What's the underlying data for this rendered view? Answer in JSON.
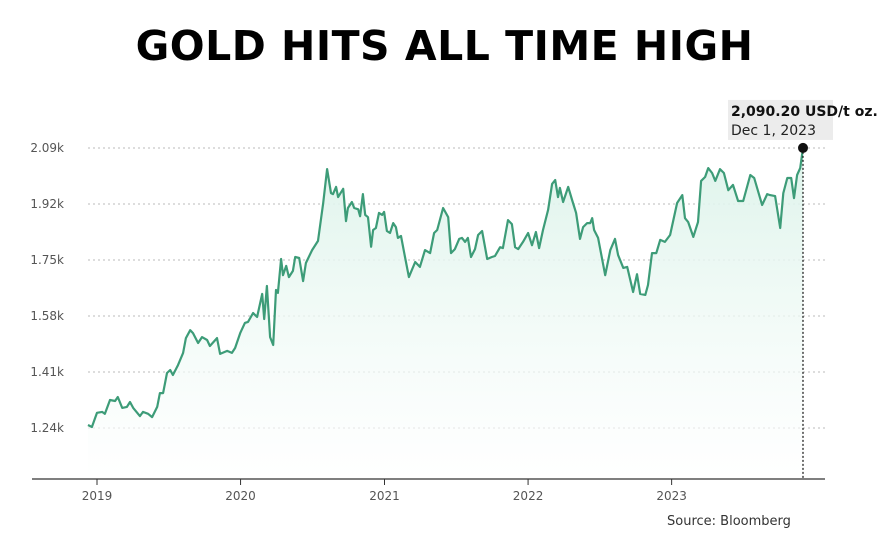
{
  "chart_data": {
    "type": "area",
    "title": "GOLD HITS ALL TIME HIGH",
    "source": "Source: Bloomberg",
    "xlabel": "",
    "ylabel": "",
    "line_color": "#3d9c78",
    "fill_color": "#e3f5ee",
    "grid": "horizontal dotted",
    "x_ticks": [
      {
        "date": "2019-01-01",
        "label": "2019"
      },
      {
        "date": "2020-01-01",
        "label": "2020"
      },
      {
        "date": "2021-01-01",
        "label": "2021"
      },
      {
        "date": "2022-01-01",
        "label": "2022"
      },
      {
        "date": "2023-01-01",
        "label": "2023"
      }
    ],
    "y_ticks": [
      {
        "value": 1240,
        "label": "1.24k"
      },
      {
        "value": 1410,
        "label": "1.41k"
      },
      {
        "value": 1580,
        "label": "1.58k"
      },
      {
        "value": 1750,
        "label": "1.75k"
      },
      {
        "value": 1920,
        "label": "1.92k"
      },
      {
        "value": 2090,
        "label": "2.09k"
      }
    ],
    "ylim": [
      1085,
      2150
    ],
    "annotation": {
      "date": "2023-12-01",
      "value": 2090.2,
      "value_label": "2,090.20 USD/t oz.",
      "date_label": "Dec 1, 2023"
    },
    "x": [
      "2018-12-09",
      "2018-12-19",
      "2019-01-01",
      "2019-01-14",
      "2019-01-21",
      "2019-02-03",
      "2019-02-16",
      "2019-02-23",
      "2019-03-06",
      "2019-03-18",
      "2019-03-26",
      "2019-04-03",
      "2019-04-20",
      "2019-04-28",
      "2019-05-11",
      "2019-05-21",
      "2019-06-03",
      "2019-06-10",
      "2019-06-18",
      "2019-06-28",
      "2019-07-06",
      "2019-07-13",
      "2019-07-26",
      "2019-08-08",
      "2019-08-15",
      "2019-08-26",
      "2019-09-02",
      "2019-09-15",
      "2019-09-25",
      "2019-10-08",
      "2019-10-15",
      "2019-11-02",
      "2019-11-10",
      "2019-11-28",
      "2019-12-10",
      "2019-12-18",
      "2019-12-31",
      "2020-01-12",
      "2020-01-20",
      "2020-02-02",
      "2020-02-12",
      "2020-02-25",
      "2020-03-01",
      "2020-03-08",
      "2020-03-16",
      "2020-03-24",
      "2020-03-31",
      "2020-04-05",
      "2020-04-13",
      "2020-04-18",
      "2020-04-26",
      "2020-05-03",
      "2020-05-13",
      "2020-05-19",
      "2020-05-29",
      "2020-06-08",
      "2020-06-15",
      "2020-07-01",
      "2020-07-16",
      "2020-07-29",
      "2020-08-08",
      "2020-08-18",
      "2020-08-23",
      "2020-08-31",
      "2020-09-05",
      "2020-09-18",
      "2020-09-25",
      "2020-09-30",
      "2020-10-10",
      "2020-10-16",
      "2020-10-26",
      "2020-10-31",
      "2020-11-07",
      "2020-11-13",
      "2020-11-20",
      "2020-11-28",
      "2020-12-03",
      "2020-12-10",
      "2020-12-18",
      "2020-12-26",
      "2020-12-31",
      "2021-01-07",
      "2021-01-15",
      "2021-01-23",
      "2021-01-30",
      "2021-02-04",
      "2021-02-12",
      "2021-02-22",
      "2021-03-04",
      "2021-03-20",
      "2021-04-01",
      "2021-04-14",
      "2021-04-27",
      "2021-05-07",
      "2021-05-15",
      "2021-05-30",
      "2021-06-12",
      "2021-06-19",
      "2021-06-29",
      "2021-07-10",
      "2021-07-17",
      "2021-07-25",
      "2021-08-01",
      "2021-08-09",
      "2021-08-19",
      "2021-08-27",
      "2021-09-06",
      "2021-09-19",
      "2021-10-01",
      "2021-10-09",
      "2021-10-22",
      "2021-10-29",
      "2021-11-11",
      "2021-11-21",
      "2021-11-29",
      "2021-12-07",
      "2021-12-19",
      "2022-01-01",
      "2022-01-11",
      "2022-01-21",
      "2022-01-29",
      "2022-02-08",
      "2022-02-21",
      "2022-03-03",
      "2022-03-11",
      "2022-03-18",
      "2022-03-23",
      "2022-03-31",
      "2022-04-13",
      "2022-04-23",
      "2022-05-03",
      "2022-05-13",
      "2022-05-21",
      "2022-05-31",
      "2022-06-08",
      "2022-06-13",
      "2022-06-18",
      "2022-06-28",
      "2022-07-16",
      "2022-07-29",
      "2022-08-10",
      "2022-08-18",
      "2022-08-31",
      "2022-09-10",
      "2022-09-25",
      "2022-10-05",
      "2022-10-13",
      "2022-10-26",
      "2022-11-02",
      "2022-11-12",
      "2022-11-23",
      "2022-12-03",
      "2022-12-15",
      "2022-12-28",
      "2023-01-15",
      "2023-01-28",
      "2023-02-04",
      "2023-02-12",
      "2023-02-25",
      "2023-03-09",
      "2023-03-17",
      "2023-03-27",
      "2023-04-04",
      "2023-04-14",
      "2023-04-22",
      "2023-05-04",
      "2023-05-14",
      "2023-05-25",
      "2023-06-06",
      "2023-06-19",
      "2023-07-02",
      "2023-07-20",
      "2023-07-30",
      "2023-08-19",
      "2023-09-01",
      "2023-09-08",
      "2023-09-21",
      "2023-10-04",
      "2023-10-12",
      "2023-10-22",
      "2023-11-01",
      "2023-11-08",
      "2023-11-16",
      "2023-11-24",
      "2023-12-01"
    ],
    "y": [
      1249,
      1243,
      1286,
      1289,
      1283,
      1325,
      1322,
      1334,
      1301,
      1304,
      1319,
      1301,
      1276,
      1289,
      1283,
      1273,
      1304,
      1346,
      1346,
      1407,
      1416,
      1401,
      1431,
      1468,
      1513,
      1537,
      1528,
      1498,
      1516,
      1507,
      1489,
      1513,
      1465,
      1474,
      1468,
      1483,
      1528,
      1559,
      1562,
      1589,
      1577,
      1647,
      1571,
      1671,
      1516,
      1492,
      1659,
      1650,
      1753,
      1704,
      1732,
      1698,
      1717,
      1759,
      1756,
      1686,
      1741,
      1780,
      1808,
      1923,
      2026,
      1953,
      1950,
      1972,
      1941,
      1966,
      1868,
      1908,
      1926,
      1908,
      1904,
      1883,
      1950,
      1887,
      1880,
      1790,
      1841,
      1847,
      1893,
      1887,
      1896,
      1838,
      1832,
      1862,
      1850,
      1817,
      1823,
      1759,
      1698,
      1744,
      1729,
      1780,
      1771,
      1832,
      1841,
      1908,
      1880,
      1771,
      1783,
      1814,
      1817,
      1805,
      1817,
      1759,
      1783,
      1826,
      1838,
      1753,
      1759,
      1762,
      1789,
      1786,
      1871,
      1859,
      1789,
      1783,
      1805,
      1832,
      1795,
      1835,
      1786,
      1841,
      1902,
      1981,
      1993,
      1941,
      1969,
      1926,
      1972,
      1932,
      1893,
      1814,
      1850,
      1862,
      1862,
      1877,
      1841,
      1817,
      1704,
      1780,
      1814,
      1765,
      1726,
      1729,
      1653,
      1707,
      1647,
      1644,
      1674,
      1771,
      1771,
      1811,
      1805,
      1826,
      1923,
      1947,
      1877,
      1865,
      1820,
      1865,
      1990,
      2002,
      2029,
      2014,
      1990,
      2026,
      2014,
      1962,
      1978,
      1929,
      1929,
      2008,
      1999,
      1917,
      1950,
      1947,
      1944,
      1847,
      1953,
      1999,
      1999,
      1938,
      2008,
      2029,
      2090.2
    ]
  }
}
